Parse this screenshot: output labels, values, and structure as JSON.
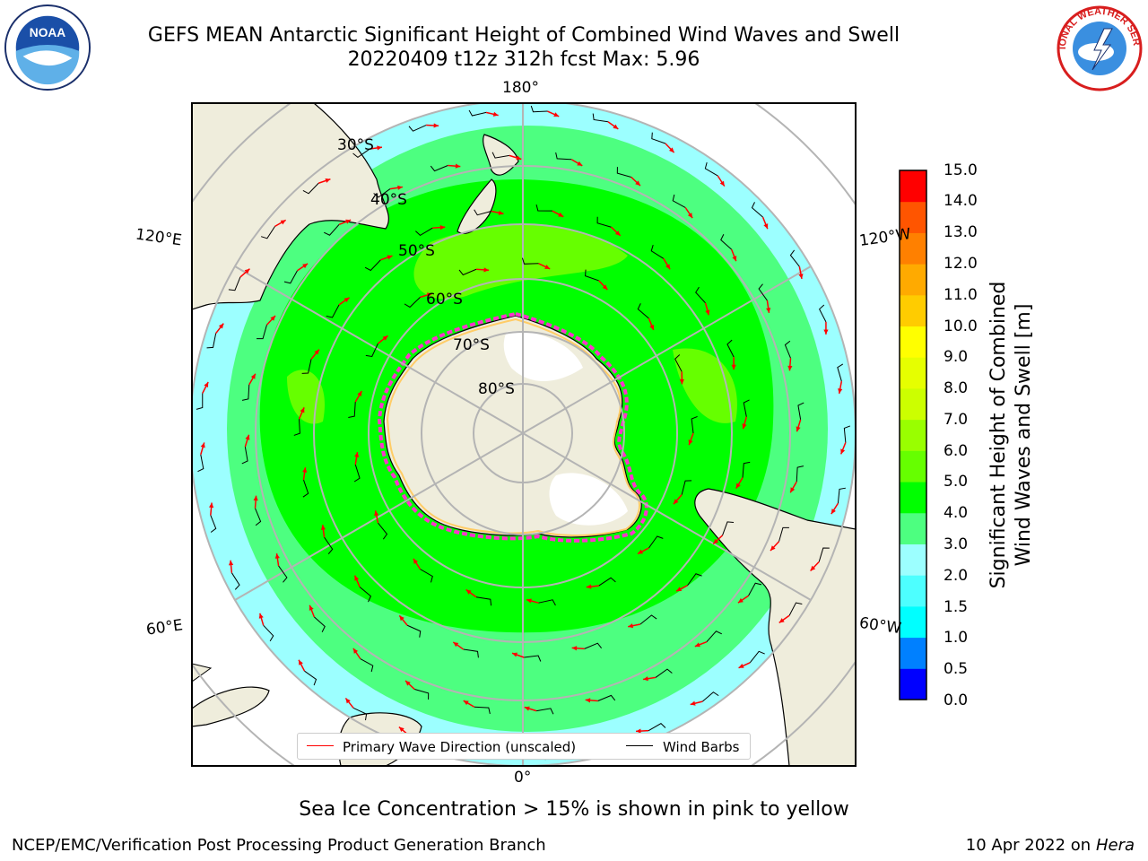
{
  "header": {
    "title_line1": "GEFS MEAN Antarctic Significant Height of Combined Wind Waves and Swell",
    "title_line2": "20220409 t12z 312h fcst   Max: 5.96"
  },
  "logos": {
    "left": "NOAA",
    "right": "NATIONAL WEATHER SERVICE"
  },
  "map": {
    "projection": "south-polar-stereographic",
    "longitude_labels": {
      "top": "180°",
      "bottom": "0°",
      "left_upper": "120°E",
      "left_lower": "60°E",
      "right_upper": "120°W",
      "right_lower": "60°W"
    },
    "latitude_labels": [
      "30°S",
      "40°S",
      "50°S",
      "60°S",
      "70°S",
      "80°S"
    ],
    "colors": {
      "land": "#efeddc",
      "ice_shelf": "#ffffff",
      "grid": "#b4b4b4",
      "wave_arrow": "#ff0000",
      "wind_barb": "#000000",
      "sea_ice_edge": [
        "#ff33cc",
        "#ff99ee",
        "#ffcc66"
      ]
    }
  },
  "colorbar": {
    "label": "Significant Height of Combined Wind Waves and Swell [m]",
    "ticks": [
      "0.0",
      "0.5",
      "1.0",
      "1.5",
      "2.0",
      "3.0",
      "4.0",
      "5.0",
      "6.0",
      "7.0",
      "8.0",
      "9.0",
      "10.0",
      "11.0",
      "12.0",
      "13.0",
      "14.0",
      "15.0"
    ],
    "colors": [
      "#0000ff",
      "#0080ff",
      "#00ffff",
      "#4dffff",
      "#9cffff",
      "#4dff80",
      "#00ff00",
      "#66ff00",
      "#99ff00",
      "#ccff00",
      "#e6ff00",
      "#ffff00",
      "#ffcc00",
      "#ffaa00",
      "#ff8000",
      "#ff5500",
      "#ff0000"
    ]
  },
  "legend": {
    "wave_direction": "Primary Wave Direction (unscaled)",
    "wind_barbs": "Wind Barbs"
  },
  "footer": {
    "note": "Sea Ice Concentration > 15% is shown in pink to yellow",
    "producer": "NCEP/EMC/Verification Post Processing Product Generation Branch",
    "date": "10 Apr 2022 on",
    "machine": "Hera"
  }
}
